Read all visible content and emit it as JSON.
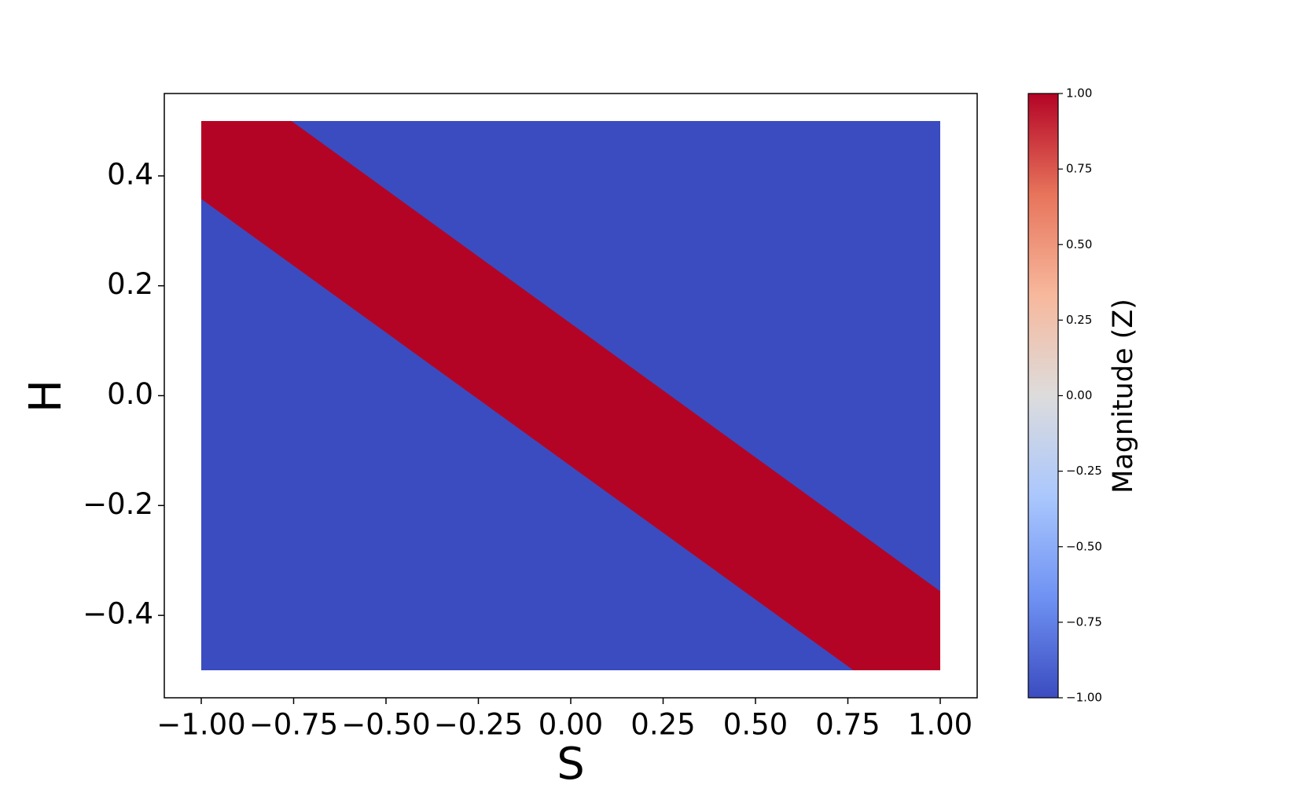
{
  "chart_data": {
    "type": "region",
    "x_label": "S",
    "y_label": "H",
    "xlim": [
      -1.1,
      1.1
    ],
    "ylim": [
      -0.55,
      0.55
    ],
    "xticks": [
      {
        "value": -1,
        "label": "−1.00"
      },
      {
        "value": -0.75,
        "label": "−0.75"
      },
      {
        "value": -0.5,
        "label": "−0.50"
      },
      {
        "value": -0.25,
        "label": "−0.25"
      },
      {
        "value": 0,
        "label": "0.00"
      },
      {
        "value": 0.25,
        "label": "0.25"
      },
      {
        "value": 0.5,
        "label": "0.50"
      },
      {
        "value": 0.75,
        "label": "0.75"
      },
      {
        "value": 1,
        "label": "1.00"
      }
    ],
    "yticks": [
      {
        "value": -0.4,
        "label": "−0.4"
      },
      {
        "value": -0.2,
        "label": "−0.2"
      },
      {
        "value": 0,
        "label": "0.0"
      },
      0.2,
      0.4
    ],
    "regions": [
      {
        "z": -1,
        "x": [
          -1,
          1,
          1,
          -1
        ],
        "y": [
          0.5,
          0.5,
          -0.5,
          -0.5
        ]
      },
      {
        "z": 1,
        "x": [
          -1,
          -0.756,
          1,
          1,
          0.765,
          -1
        ],
        "y": [
          0.5,
          0.5,
          -0.356,
          -0.5,
          -0.5,
          0.358
        ]
      }
    ],
    "colormap": [
      "#3b4cc0",
      "#6f92f3",
      "#aac7fd",
      "#dddcdc",
      "#f7b89c",
      "#e7745b",
      "#b40426"
    ],
    "colorbar": {
      "label": "Magnitude (Z)",
      "lim": [
        -1,
        1
      ],
      "ticks": [
        {
          "value": -1,
          "label": "−1.00"
        },
        {
          "value": -0.75,
          "label": "−0.75"
        },
        {
          "value": -0.5,
          "label": "−0.50"
        },
        {
          "value": -0.25,
          "label": "−0.25"
        },
        {
          "value": 0,
          "label": "0.00"
        },
        {
          "value": 0.25,
          "label": "0.25"
        },
        {
          "value": 0.5,
          "label": "0.50"
        },
        {
          "value": 0.75,
          "label": "0.75"
        },
        {
          "value": 1,
          "label": "1.00"
        }
      ]
    }
  }
}
